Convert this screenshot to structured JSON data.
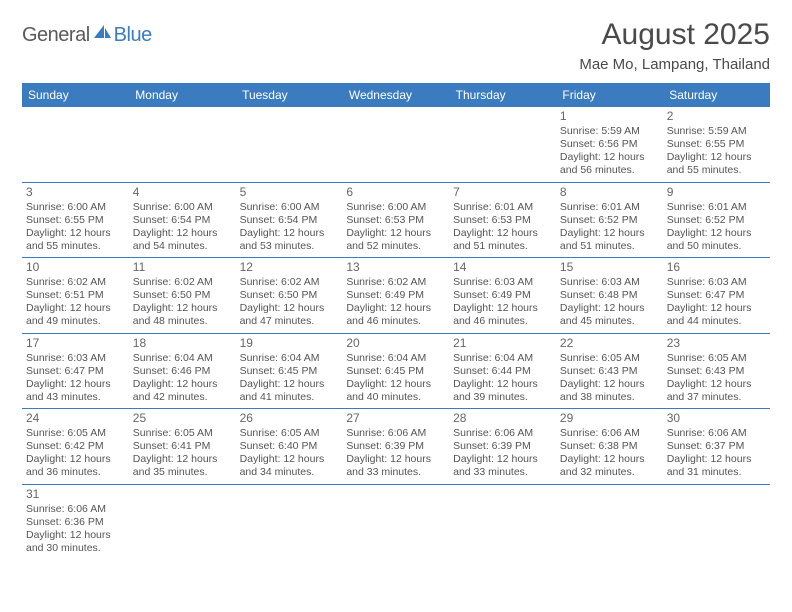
{
  "logo": {
    "general": "General",
    "blue": "Blue"
  },
  "title": "August 2025",
  "location": "Mae Mo, Lampang, Thailand",
  "colors": {
    "header_bg": "#3b7bbf",
    "header_text": "#ffffff",
    "border": "#3b7bbf",
    "body_text": "#555555",
    "title_text": "#4a4a4a"
  },
  "weekdays": [
    "Sunday",
    "Monday",
    "Tuesday",
    "Wednesday",
    "Thursday",
    "Friday",
    "Saturday"
  ],
  "sunrise_label": "Sunrise",
  "sunset_label": "Sunset",
  "daylight_label": "Daylight",
  "hours_word": "hours",
  "minutes_word": "minutes",
  "and_word": "and",
  "grid": [
    [
      null,
      null,
      null,
      null,
      null,
      {
        "day": 1,
        "sunrise": "5:59 AM",
        "sunset": "6:56 PM",
        "dl_h": 12,
        "dl_m": 56
      },
      {
        "day": 2,
        "sunrise": "5:59 AM",
        "sunset": "6:55 PM",
        "dl_h": 12,
        "dl_m": 55
      }
    ],
    [
      {
        "day": 3,
        "sunrise": "6:00 AM",
        "sunset": "6:55 PM",
        "dl_h": 12,
        "dl_m": 55
      },
      {
        "day": 4,
        "sunrise": "6:00 AM",
        "sunset": "6:54 PM",
        "dl_h": 12,
        "dl_m": 54
      },
      {
        "day": 5,
        "sunrise": "6:00 AM",
        "sunset": "6:54 PM",
        "dl_h": 12,
        "dl_m": 53
      },
      {
        "day": 6,
        "sunrise": "6:00 AM",
        "sunset": "6:53 PM",
        "dl_h": 12,
        "dl_m": 52
      },
      {
        "day": 7,
        "sunrise": "6:01 AM",
        "sunset": "6:53 PM",
        "dl_h": 12,
        "dl_m": 51
      },
      {
        "day": 8,
        "sunrise": "6:01 AM",
        "sunset": "6:52 PM",
        "dl_h": 12,
        "dl_m": 51
      },
      {
        "day": 9,
        "sunrise": "6:01 AM",
        "sunset": "6:52 PM",
        "dl_h": 12,
        "dl_m": 50
      }
    ],
    [
      {
        "day": 10,
        "sunrise": "6:02 AM",
        "sunset": "6:51 PM",
        "dl_h": 12,
        "dl_m": 49
      },
      {
        "day": 11,
        "sunrise": "6:02 AM",
        "sunset": "6:50 PM",
        "dl_h": 12,
        "dl_m": 48
      },
      {
        "day": 12,
        "sunrise": "6:02 AM",
        "sunset": "6:50 PM",
        "dl_h": 12,
        "dl_m": 47
      },
      {
        "day": 13,
        "sunrise": "6:02 AM",
        "sunset": "6:49 PM",
        "dl_h": 12,
        "dl_m": 46
      },
      {
        "day": 14,
        "sunrise": "6:03 AM",
        "sunset": "6:49 PM",
        "dl_h": 12,
        "dl_m": 46
      },
      {
        "day": 15,
        "sunrise": "6:03 AM",
        "sunset": "6:48 PM",
        "dl_h": 12,
        "dl_m": 45
      },
      {
        "day": 16,
        "sunrise": "6:03 AM",
        "sunset": "6:47 PM",
        "dl_h": 12,
        "dl_m": 44
      }
    ],
    [
      {
        "day": 17,
        "sunrise": "6:03 AM",
        "sunset": "6:47 PM",
        "dl_h": 12,
        "dl_m": 43
      },
      {
        "day": 18,
        "sunrise": "6:04 AM",
        "sunset": "6:46 PM",
        "dl_h": 12,
        "dl_m": 42
      },
      {
        "day": 19,
        "sunrise": "6:04 AM",
        "sunset": "6:45 PM",
        "dl_h": 12,
        "dl_m": 41
      },
      {
        "day": 20,
        "sunrise": "6:04 AM",
        "sunset": "6:45 PM",
        "dl_h": 12,
        "dl_m": 40
      },
      {
        "day": 21,
        "sunrise": "6:04 AM",
        "sunset": "6:44 PM",
        "dl_h": 12,
        "dl_m": 39
      },
      {
        "day": 22,
        "sunrise": "6:05 AM",
        "sunset": "6:43 PM",
        "dl_h": 12,
        "dl_m": 38
      },
      {
        "day": 23,
        "sunrise": "6:05 AM",
        "sunset": "6:43 PM",
        "dl_h": 12,
        "dl_m": 37
      }
    ],
    [
      {
        "day": 24,
        "sunrise": "6:05 AM",
        "sunset": "6:42 PM",
        "dl_h": 12,
        "dl_m": 36
      },
      {
        "day": 25,
        "sunrise": "6:05 AM",
        "sunset": "6:41 PM",
        "dl_h": 12,
        "dl_m": 35
      },
      {
        "day": 26,
        "sunrise": "6:05 AM",
        "sunset": "6:40 PM",
        "dl_h": 12,
        "dl_m": 34
      },
      {
        "day": 27,
        "sunrise": "6:06 AM",
        "sunset": "6:39 PM",
        "dl_h": 12,
        "dl_m": 33
      },
      {
        "day": 28,
        "sunrise": "6:06 AM",
        "sunset": "6:39 PM",
        "dl_h": 12,
        "dl_m": 33
      },
      {
        "day": 29,
        "sunrise": "6:06 AM",
        "sunset": "6:38 PM",
        "dl_h": 12,
        "dl_m": 32
      },
      {
        "day": 30,
        "sunrise": "6:06 AM",
        "sunset": "6:37 PM",
        "dl_h": 12,
        "dl_m": 31
      }
    ],
    [
      {
        "day": 31,
        "sunrise": "6:06 AM",
        "sunset": "6:36 PM",
        "dl_h": 12,
        "dl_m": 30
      },
      null,
      null,
      null,
      null,
      null,
      null
    ]
  ]
}
